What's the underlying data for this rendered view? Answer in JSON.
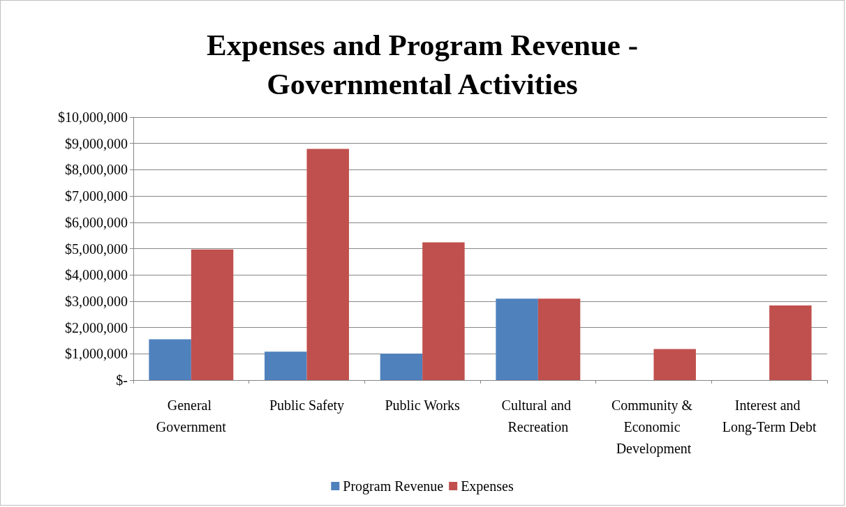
{
  "chart_data": {
    "type": "bar",
    "title": "Expenses and Program Revenue -\nGovernmental Activities",
    "categories": [
      "General Government",
      "Public Safety",
      "Public Works",
      "Cultural and Recreation",
      "Community & Economic Development",
      "Interest and Long-Term Debt"
    ],
    "series": [
      {
        "name": "Program Revenue",
        "color": "#4f81bd",
        "values": [
          1550000,
          1080000,
          1000000,
          3100000,
          0,
          0
        ]
      },
      {
        "name": "Expenses",
        "color": "#c0504d",
        "values": [
          4970000,
          8790000,
          5240000,
          3100000,
          1180000,
          2840000
        ]
      }
    ],
    "ylim": [
      0,
      10000000
    ],
    "yticks": [
      {
        "value": 0,
        "label": "$-"
      },
      {
        "value": 1000000,
        "label": "$1,000,000"
      },
      {
        "value": 2000000,
        "label": "$2,000,000"
      },
      {
        "value": 3000000,
        "label": "$3,000,000"
      },
      {
        "value": 4000000,
        "label": "$4,000,000"
      },
      {
        "value": 5000000,
        "label": "$5,000,000"
      },
      {
        "value": 6000000,
        "label": "$6,000,000"
      },
      {
        "value": 7000000,
        "label": "$7,000,000"
      },
      {
        "value": 8000000,
        "label": "$8,000,000"
      },
      {
        "value": 9000000,
        "label": "$9,000,000"
      },
      {
        "value": 10000000,
        "label": "$10,000,000"
      }
    ],
    "grid": "y",
    "legend": "bottom"
  }
}
